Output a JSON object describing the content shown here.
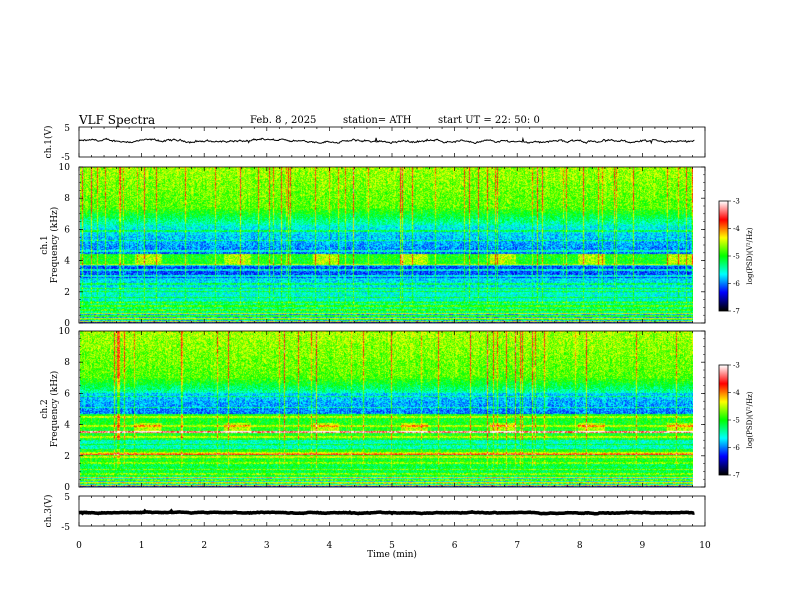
{
  "header": {
    "title": "VLF  Spectra",
    "date": "Feb. 8  , 2025",
    "station": "station= ATH",
    "start_ut": "start  UT  =    22: 50: 0"
  },
  "chart_data": [
    {
      "type": "line",
      "panel": "ch1-waveform",
      "ylabel": "ch.1(V)",
      "ylim": [
        -5,
        5
      ],
      "yticks": [
        "5",
        "-5"
      ],
      "xlim": [
        0,
        10
      ],
      "baseline": 0.3,
      "noise_amplitude": 0.5
    },
    {
      "type": "heatmap",
      "panel": "ch1-spectrogram",
      "ylabel_line1": "ch.1",
      "ylabel_line2": "Frequency  (kHz)",
      "ylim": [
        0,
        10
      ],
      "yticks": [
        0,
        2,
        4,
        6,
        8,
        10
      ],
      "xlim": [
        0,
        9.83
      ],
      "colorbar": {
        "label": "log(PSD)(V²/Hz)",
        "range": [
          -7,
          -3
        ],
        "ticks": [
          "-3",
          "-4",
          "-5",
          "-6",
          "-7"
        ]
      }
    },
    {
      "type": "heatmap",
      "panel": "ch2-spectrogram",
      "ylabel_line1": "ch.2",
      "ylabel_line2": "Frequency  (kHz)",
      "ylim": [
        0,
        10
      ],
      "yticks": [
        0,
        2,
        4,
        6,
        8,
        10
      ],
      "xlim": [
        0,
        9.83
      ],
      "colorbar": {
        "label": "log(PSD)(V²/Hz)",
        "range": [
          -7,
          -3
        ],
        "ticks": [
          "-3",
          "-4",
          "-5",
          "-6",
          "-7"
        ]
      }
    },
    {
      "type": "line",
      "panel": "ch3-waveform",
      "ylabel": "ch.3(V)",
      "ylim": [
        -5,
        5
      ],
      "yticks": [
        "5",
        "-5"
      ],
      "xlim": [
        0,
        10
      ],
      "baseline": -0.6,
      "noise_amplitude": 0.15
    }
  ],
  "x_axis": {
    "label": "Time  (min)",
    "ticks": [
      "0",
      "1",
      "2",
      "3",
      "4",
      "5",
      "6",
      "7",
      "8",
      "9",
      "10"
    ]
  },
  "colors": {
    "colormap": [
      "#000000",
      "#0000ff",
      "#00ffff",
      "#00ff00",
      "#ffff00",
      "#ff0000",
      "#ffffff"
    ]
  }
}
